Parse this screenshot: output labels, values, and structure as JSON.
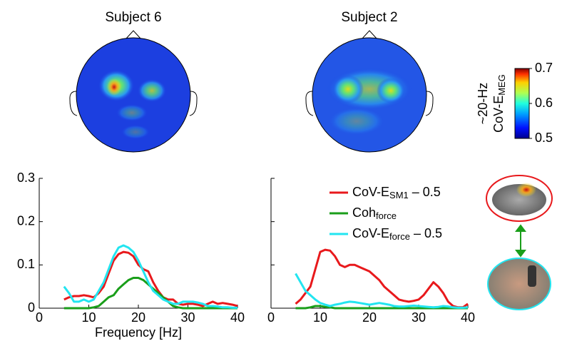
{
  "chart_data": [
    {
      "type": "line",
      "title": "Subject 6",
      "xlabel": "Frequency [Hz]",
      "x": [
        5,
        6,
        7,
        8,
        9,
        10,
        11,
        12,
        13,
        14,
        15,
        16,
        17,
        18,
        19,
        20,
        21,
        22,
        23,
        24,
        25,
        26,
        27,
        28,
        29,
        30,
        31,
        32,
        33,
        34,
        35,
        36,
        37,
        38,
        39,
        40
      ],
      "xlim": [
        0,
        40
      ],
      "xticks": [
        0,
        10,
        20,
        30,
        40
      ],
      "ylim": [
        0,
        0.3
      ],
      "yticks": [
        0,
        0.1,
        0.2,
        0.3
      ],
      "series": [
        {
          "color": "#e8191c",
          "values": [
            0.02,
            0.025,
            0.028,
            0.028,
            0.03,
            0.028,
            0.025,
            0.035,
            0.05,
            0.08,
            0.11,
            0.125,
            0.13,
            0.128,
            0.12,
            0.1,
            0.09,
            0.085,
            0.06,
            0.04,
            0.025,
            0.02,
            0.02,
            0.01,
            0.008,
            0.01,
            0.01,
            0.008,
            0.005,
            0.01,
            0.015,
            0.01,
            0.012,
            0.01,
            0.008,
            0.005
          ]
        },
        {
          "color": "#1a9e1a",
          "values": [
            0,
            0,
            0,
            0,
            0,
            0,
            0.002,
            0.005,
            0.015,
            0.025,
            0.03,
            0.045,
            0.055,
            0.065,
            0.07,
            0.07,
            0.065,
            0.055,
            0.045,
            0.035,
            0.025,
            0.015,
            0.005,
            0.002,
            0,
            0,
            0,
            0,
            0,
            0,
            0,
            0,
            0,
            0,
            0,
            0
          ]
        },
        {
          "color": "#22e5f0",
          "values": [
            0.05,
            0.035,
            0.015,
            0.015,
            0.02,
            0.015,
            0.02,
            0.04,
            0.06,
            0.09,
            0.12,
            0.14,
            0.145,
            0.14,
            0.13,
            0.11,
            0.085,
            0.06,
            0.04,
            0.03,
            0.02,
            0.015,
            0.01,
            0.01,
            0.015,
            0.015,
            0.015,
            0.013,
            0.01,
            0.005,
            0.005,
            0.004,
            0.002,
            0.002,
            0.001,
            0.001
          ]
        }
      ]
    },
    {
      "type": "line",
      "title": "Subject 2",
      "legend": "upper right",
      "x": [
        5,
        6,
        7,
        8,
        9,
        10,
        11,
        12,
        13,
        14,
        15,
        16,
        17,
        18,
        19,
        20,
        21,
        22,
        23,
        24,
        25,
        26,
        27,
        28,
        29,
        30,
        31,
        32,
        33,
        34,
        35,
        36,
        37,
        38,
        39,
        40
      ],
      "xlim": [
        0,
        40
      ],
      "xticks": [
        0,
        10,
        20,
        30,
        40
      ],
      "ylim": [
        0,
        0.3
      ],
      "yticks": [
        0,
        0.1,
        0.2,
        0.3
      ],
      "series": [
        {
          "name": "CoV-E",
          "name_sub": "SM1",
          "name_suffix": " – 0.5",
          "color": "#e8191c",
          "values": [
            0.01,
            0.02,
            0.035,
            0.05,
            0.09,
            0.13,
            0.135,
            0.133,
            0.12,
            0.1,
            0.095,
            0.1,
            0.1,
            0.095,
            0.09,
            0.085,
            0.075,
            0.065,
            0.05,
            0.04,
            0.03,
            0.02,
            0.017,
            0.015,
            0.017,
            0.02,
            0.03,
            0.045,
            0.06,
            0.05,
            0.035,
            0.015,
            0.005,
            0.002,
            0.002,
            0.01
          ]
        },
        {
          "name": "Coh",
          "name_sub": "force",
          "color": "#1a9e1a",
          "values": [
            0,
            0,
            0,
            0.002,
            0.005,
            0.005,
            0.003,
            0.002,
            0,
            0,
            0,
            0,
            0,
            0,
            0,
            0,
            0,
            0,
            0,
            0,
            0,
            0,
            0,
            0,
            0,
            0,
            0,
            0,
            0,
            0,
            0,
            0,
            0,
            0,
            0,
            0
          ]
        },
        {
          "name": "CoV-E",
          "name_sub": "force",
          "name_suffix": " – 0.5",
          "color": "#22e5f0",
          "values": [
            0.08,
            0.06,
            0.04,
            0.03,
            0.02,
            0.012,
            0.008,
            0.005,
            0.008,
            0.01,
            0.013,
            0.015,
            0.014,
            0.012,
            0.01,
            0.008,
            0.01,
            0.012,
            0.01,
            0.008,
            0.005,
            0.004,
            0.004,
            0.005,
            0.006,
            0.005,
            0.004,
            0.003,
            0.002,
            0.003,
            0.005,
            0.004,
            0.002,
            0.001,
            0.001,
            0.002
          ]
        }
      ]
    }
  ],
  "colorbar": {
    "label_top": "~20-Hz",
    "label": "CoV-E",
    "label_sub": "MEG",
    "lim": [
      0.5,
      0.7
    ],
    "ticks": [
      0.5,
      0.6,
      0.7
    ]
  }
}
